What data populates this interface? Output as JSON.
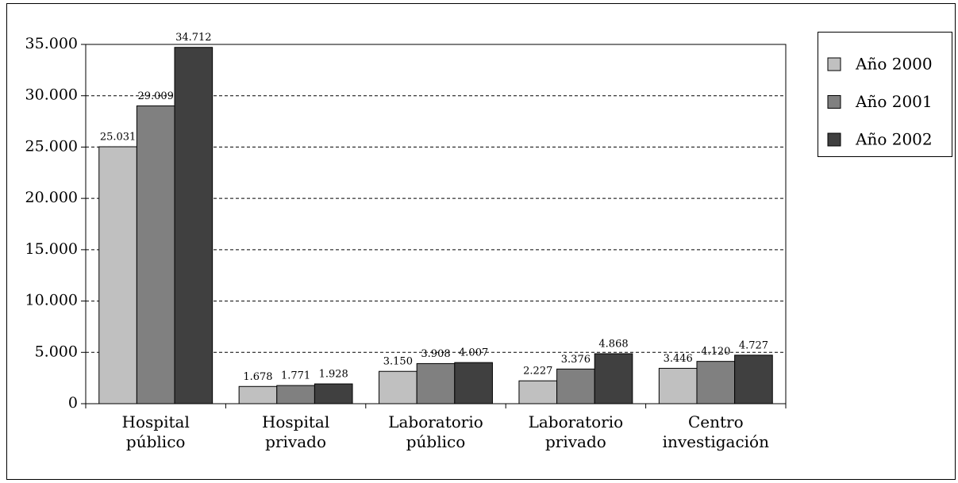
{
  "chart_data": {
    "type": "bar",
    "categories": [
      "Hospital público",
      "Hospital privado",
      "Laboratorio público",
      "Laboratorio privado",
      "Centro investigación"
    ],
    "series": [
      {
        "name": "Año 2000",
        "color": "#c0c0c0",
        "values": [
          25031,
          1678,
          3150,
          2227,
          3446
        ],
        "value_labels": [
          "25.031",
          "1.678",
          "3.150",
          "2.227",
          "3.446"
        ]
      },
      {
        "name": "Año 2001",
        "color": "#808080",
        "values": [
          29009,
          1771,
          3908,
          3376,
          4120
        ],
        "value_labels": [
          "29.009",
          "1.771",
          "3.908",
          "3.376",
          "4.120"
        ]
      },
      {
        "name": "Año 2002",
        "color": "#404040",
        "values": [
          34712,
          1928,
          4007,
          4868,
          4727
        ],
        "value_labels": [
          "34.712",
          "1.928",
          "4.007",
          "4.868",
          "4.727"
        ]
      }
    ],
    "ylim": [
      0,
      35000
    ],
    "yticks": [
      0,
      {
        "value": 5000,
        "label": "5.000"
      },
      {
        "value": 10000,
        "label": "10.000"
      },
      {
        "value": 15000,
        "label": "15.000"
      },
      {
        "value": 20000,
        "label": "20.000"
      },
      {
        "value": 25000,
        "label": "25.000"
      },
      {
        "value": 30000,
        "label": "30.000"
      },
      {
        "value": 35000,
        "label": "35.000"
      }
    ],
    "grid": true,
    "legend": "right"
  }
}
